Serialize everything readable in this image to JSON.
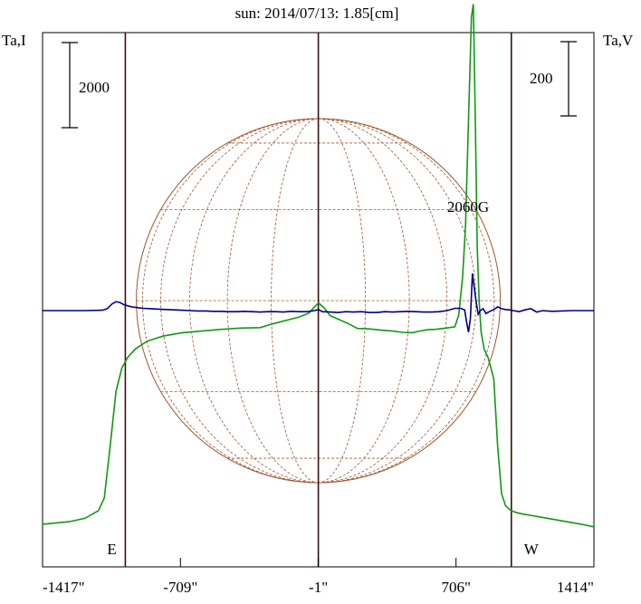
{
  "chart_data": {
    "type": "line",
    "title": "sun: 2014/07/13: 1.85[cm]",
    "y_left_label": "Ta,I",
    "y_right_label": "Ta,V",
    "left_scale_label": "2000",
    "right_scale_label": "200",
    "x_ticks": [
      "-1417\"",
      "-709\"",
      "-1\"",
      "706\"",
      "1414\""
    ],
    "x_tick_values": [
      -1417,
      -709,
      -1,
      706,
      1414
    ],
    "xlim": [
      -1417,
      1414
    ],
    "limb_markers": [
      {
        "label": "E",
        "x": -992
      },
      {
        "label": "W",
        "x": 990
      }
    ],
    "center_marker_x": -1,
    "annotation": {
      "text": "2060G",
      "x": 800
    },
    "grid": false,
    "colors": {
      "stokes_i": "#119911",
      "stokes_v": "#000080",
      "disk": "#a05530",
      "markers": "#3a1010",
      "frame": "#000000"
    },
    "series": [
      {
        "key": "I",
        "x": [
          -1417,
          -1280,
          -1200,
          -1130,
          -1100,
          -1070,
          -1040,
          -1010,
          -980,
          -940,
          -880,
          -800,
          -700,
          -600,
          -500,
          -400,
          -300,
          -250,
          -200,
          -150,
          -100,
          -50,
          -20,
          0,
          30,
          60,
          100,
          150,
          200,
          260,
          320,
          380,
          430,
          480,
          520,
          560,
          600,
          640,
          670,
          700,
          720,
          740,
          755,
          770,
          785,
          795,
          805,
          815,
          825,
          835,
          850,
          870,
          900,
          920,
          940,
          960,
          980,
          1000,
          1020,
          1050,
          1100,
          1150,
          1200,
          1250,
          1300,
          1350,
          1414
        ],
        "values": [
          -5020,
          -4960,
          -4880,
          -4700,
          -4400,
          -3200,
          -1900,
          -1350,
          -1100,
          -900,
          -720,
          -600,
          -520,
          -480,
          -440,
          -410,
          -400,
          -330,
          -270,
          -210,
          -150,
          -60,
          90,
          180,
          60,
          -120,
          -200,
          -300,
          -420,
          -430,
          -460,
          -480,
          -510,
          -520,
          -480,
          -450,
          -440,
          -420,
          -400,
          -380,
          -100,
          800,
          2000,
          4500,
          6900,
          7200,
          4500,
          1500,
          200,
          -500,
          -900,
          -1100,
          -1600,
          -3200,
          -4300,
          -4580,
          -4670,
          -4720,
          -4750,
          -4780,
          -4820,
          -4860,
          -4900,
          -4940,
          -4980,
          -5020,
          -5080
        ]
      },
      {
        "key": "V",
        "x": [
          -1417,
          -1200,
          -1110,
          -1085,
          -1060,
          -1040,
          -1020,
          -1000,
          -980,
          -960,
          -930,
          -900,
          -860,
          -820,
          -780,
          -740,
          -700,
          -660,
          -620,
          -580,
          -540,
          -500,
          -460,
          -420,
          -380,
          -340,
          -300,
          -260,
          -220,
          -180,
          -140,
          -100,
          -60,
          -20,
          0,
          20,
          60,
          100,
          140,
          180,
          220,
          260,
          300,
          340,
          380,
          420,
          460,
          500,
          540,
          580,
          620,
          660,
          700,
          730,
          750,
          760,
          770,
          780,
          790,
          800,
          810,
          820,
          830,
          845,
          860,
          880,
          900,
          920,
          940,
          960,
          980,
          1000,
          1030,
          1060,
          1090,
          1120,
          1150,
          1200,
          1300,
          1414
        ],
        "values": [
          0,
          0,
          1,
          5,
          18,
          24,
          22,
          16,
          13,
          10,
          8,
          6,
          5,
          4,
          3,
          2,
          1,
          0,
          -1,
          -1,
          -2,
          -2,
          -3,
          -3,
          -2,
          -3,
          -4,
          -3,
          -3,
          -4,
          -2,
          -3,
          -3,
          0,
          3,
          -3,
          -4,
          -5,
          -3,
          -4,
          -3,
          -5,
          -5,
          -3,
          -4,
          -3,
          -2,
          -3,
          -4,
          -4,
          -3,
          0,
          6,
          6,
          2,
          -30,
          -58,
          -20,
          100,
          60,
          20,
          -10,
          0,
          5,
          -8,
          -2,
          3,
          10,
          5,
          3,
          2,
          0,
          -3,
          2,
          5,
          -4,
          0,
          -2,
          0,
          0
        ]
      }
    ]
  }
}
